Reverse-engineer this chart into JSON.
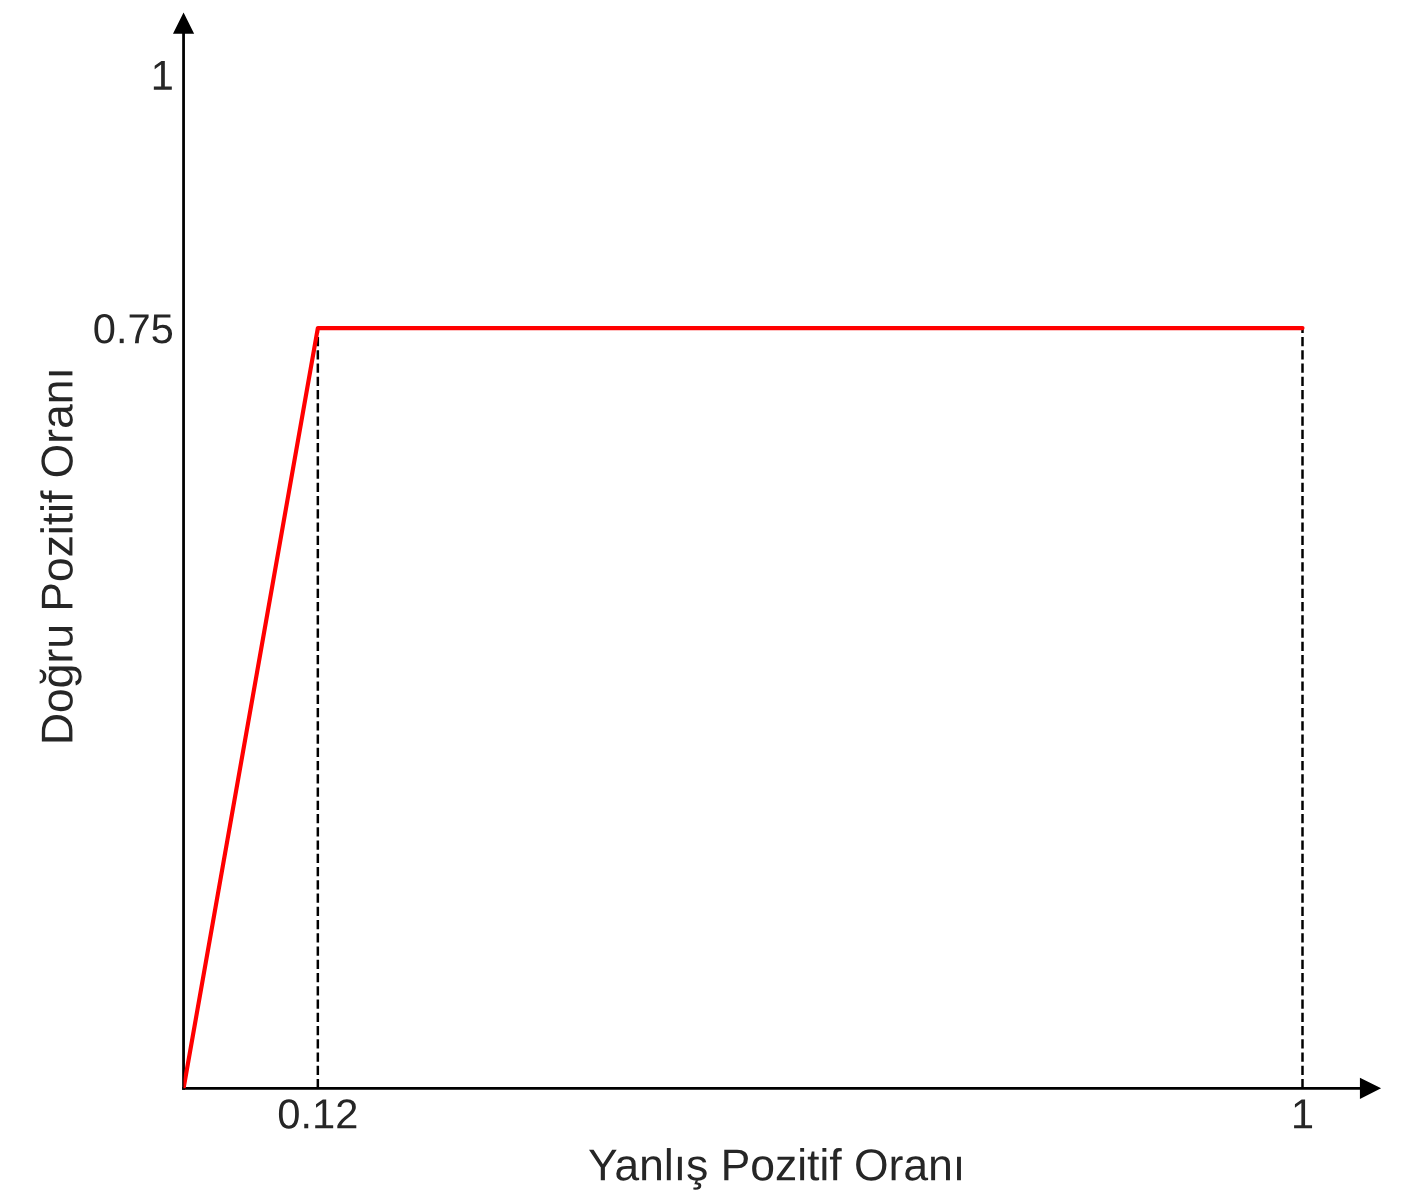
{
  "chart_data": {
    "type": "line",
    "xlabel": "Yanlış Pozitif Oranı",
    "ylabel": "Doğru Pozitif Oranı",
    "x": [
      0,
      0.12,
      1
    ],
    "series": [
      {
        "color": "#ff0000",
        "values": [
          0,
          0.75,
          0.75
        ]
      }
    ],
    "xlim": [
      0,
      1.06
    ],
    "ylim": [
      0,
      1.05
    ],
    "xticks": [
      0.12,
      1
    ],
    "yticks": [
      0.75,
      1
    ],
    "ref_lines": [
      {
        "axis": "x",
        "value": 0.12,
        "line_style": "dashed",
        "color": "#000000"
      },
      {
        "axis": "x",
        "value": 1,
        "line_style": "dashed",
        "color": "#000000"
      }
    ],
    "grid": false,
    "marker": "none",
    "line_style": "solid"
  }
}
